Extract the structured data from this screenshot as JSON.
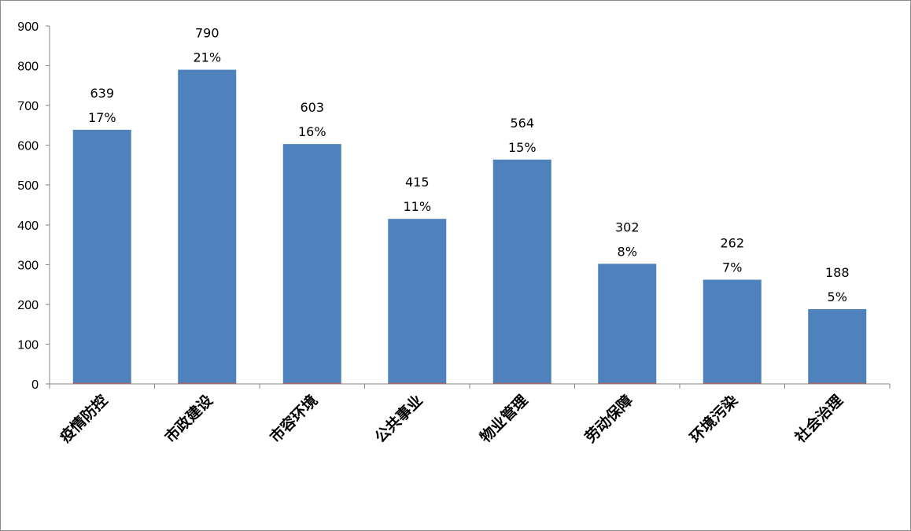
{
  "chart_data": {
    "type": "bar",
    "categories": [
      "疫情防控",
      "市政建设",
      "市容环境",
      "公共事业",
      "物业管理",
      "劳动保障",
      "环境污染",
      "社会治理"
    ],
    "values": [
      639,
      790,
      603,
      415,
      564,
      302,
      262,
      188
    ],
    "percent_labels": [
      "17%",
      "21%",
      "16%",
      "11%",
      "15%",
      "8%",
      "7%",
      "5%"
    ],
    "y_ticks": [
      0,
      100,
      200,
      300,
      400,
      500,
      600,
      700,
      800,
      900
    ],
    "ylim": [
      0,
      900
    ],
    "title": "",
    "xlabel": "",
    "ylabel": "",
    "grid": false,
    "legend": "none",
    "colors": {
      "bar": "#4f81bd",
      "axis": "#868686",
      "baseline": "#c0504d"
    }
  }
}
